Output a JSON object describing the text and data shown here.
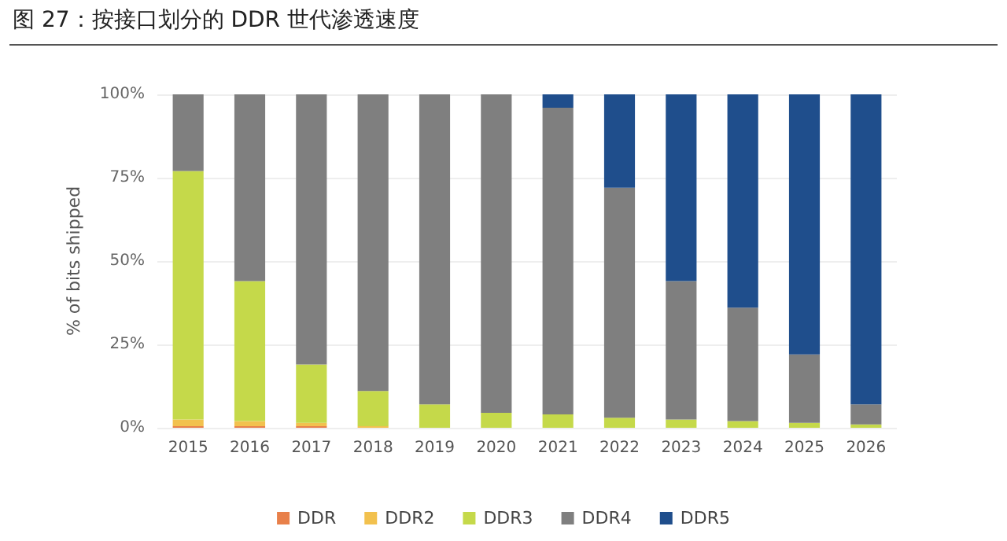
{
  "chart_data": {
    "type": "bar",
    "title": "图 27：按接口划分的 DDR 世代渗透速度",
    "ylabel": "% of bits shipped",
    "stacked": true,
    "grid": "y",
    "legend": "bottom",
    "categories": [
      "2015",
      "2016",
      "2017",
      "2018",
      "2019",
      "2020",
      "2021",
      "2022",
      "2023",
      "2024",
      "2025",
      "2026"
    ],
    "ylim": [
      0,
      100
    ],
    "yticks": [
      {
        "value": 0,
        "label": "0%"
      },
      {
        "value": 25,
        "label": "25%"
      },
      {
        "value": 50,
        "label": "50%"
      },
      {
        "value": 75,
        "label": "75%"
      },
      {
        "value": 100,
        "label": "100%"
      }
    ],
    "series": [
      {
        "name": "DDR",
        "color": "#e8804a",
        "values": [
          0.5,
          0.5,
          0.5,
          0,
          0,
          0,
          0,
          0,
          0,
          0,
          0,
          0
        ]
      },
      {
        "name": "DDR2",
        "color": "#f2c14e",
        "values": [
          2,
          1.5,
          1,
          0.5,
          0,
          0,
          0,
          0,
          0,
          0,
          0,
          0
        ]
      },
      {
        "name": "DDR3",
        "color": "#c5d94a",
        "values": [
          74.5,
          42,
          17.5,
          10.5,
          7,
          4.5,
          4,
          3,
          2.5,
          2,
          1.5,
          1
        ]
      },
      {
        "name": "DDR4",
        "color": "#7f7f7f",
        "values": [
          23,
          56,
          81,
          89,
          93,
          95.5,
          92,
          69,
          41.5,
          34,
          20.5,
          6
        ]
      },
      {
        "name": "DDR5",
        "color": "#1f4e8c",
        "values": [
          0,
          0,
          0,
          0,
          0,
          0,
          4,
          28,
          56,
          64,
          78,
          93
        ]
      }
    ]
  }
}
